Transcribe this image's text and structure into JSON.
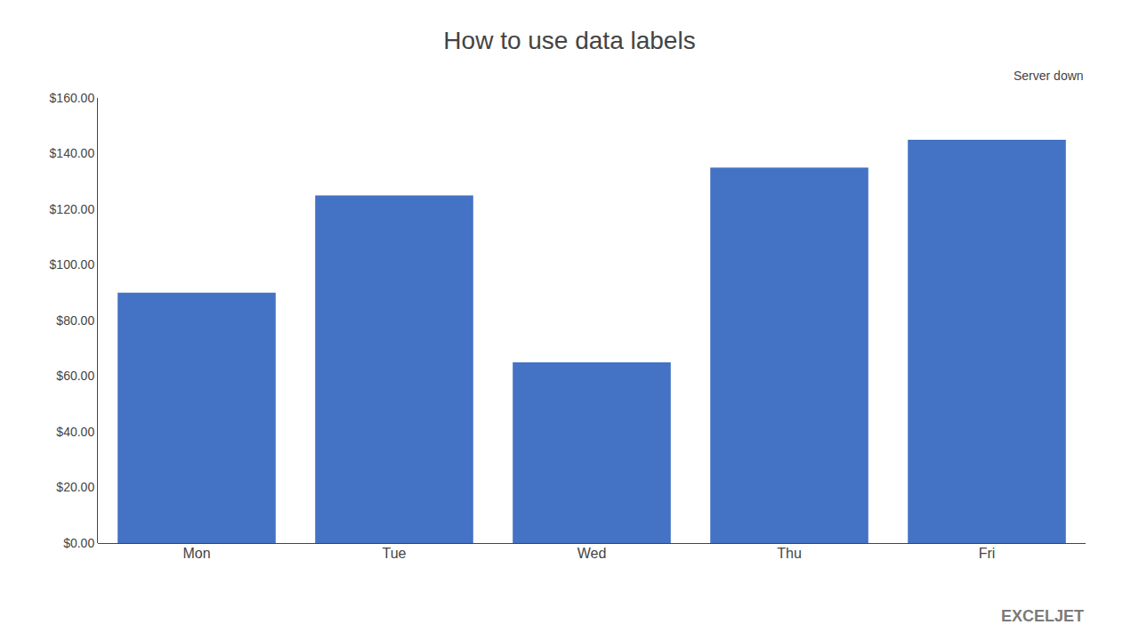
{
  "chart_data": {
    "type": "bar",
    "title": "How to use data labels",
    "categories": [
      "Mon",
      "Tue",
      "Wed",
      "Thu",
      "Fri"
    ],
    "values": [
      90,
      125,
      65,
      135,
      145
    ],
    "color": "#4472c4",
    "ylim": [
      0,
      160
    ],
    "yticks": [
      {
        "value": 0,
        "label": "$0.00"
      },
      {
        "value": 20,
        "label": "$20.00"
      },
      {
        "value": 40,
        "label": "$40.00"
      },
      {
        "value": 60,
        "label": "$60.00"
      },
      {
        "value": 80,
        "label": "$80.00"
      },
      {
        "value": 100,
        "label": "$100.00"
      },
      {
        "value": 120,
        "label": "$120.00"
      },
      {
        "value": 140,
        "label": "$140.00"
      },
      {
        "value": 160,
        "label": "$160.00"
      }
    ],
    "grid": false,
    "annotations": [
      "Server down",
      "EXCELJET"
    ]
  }
}
